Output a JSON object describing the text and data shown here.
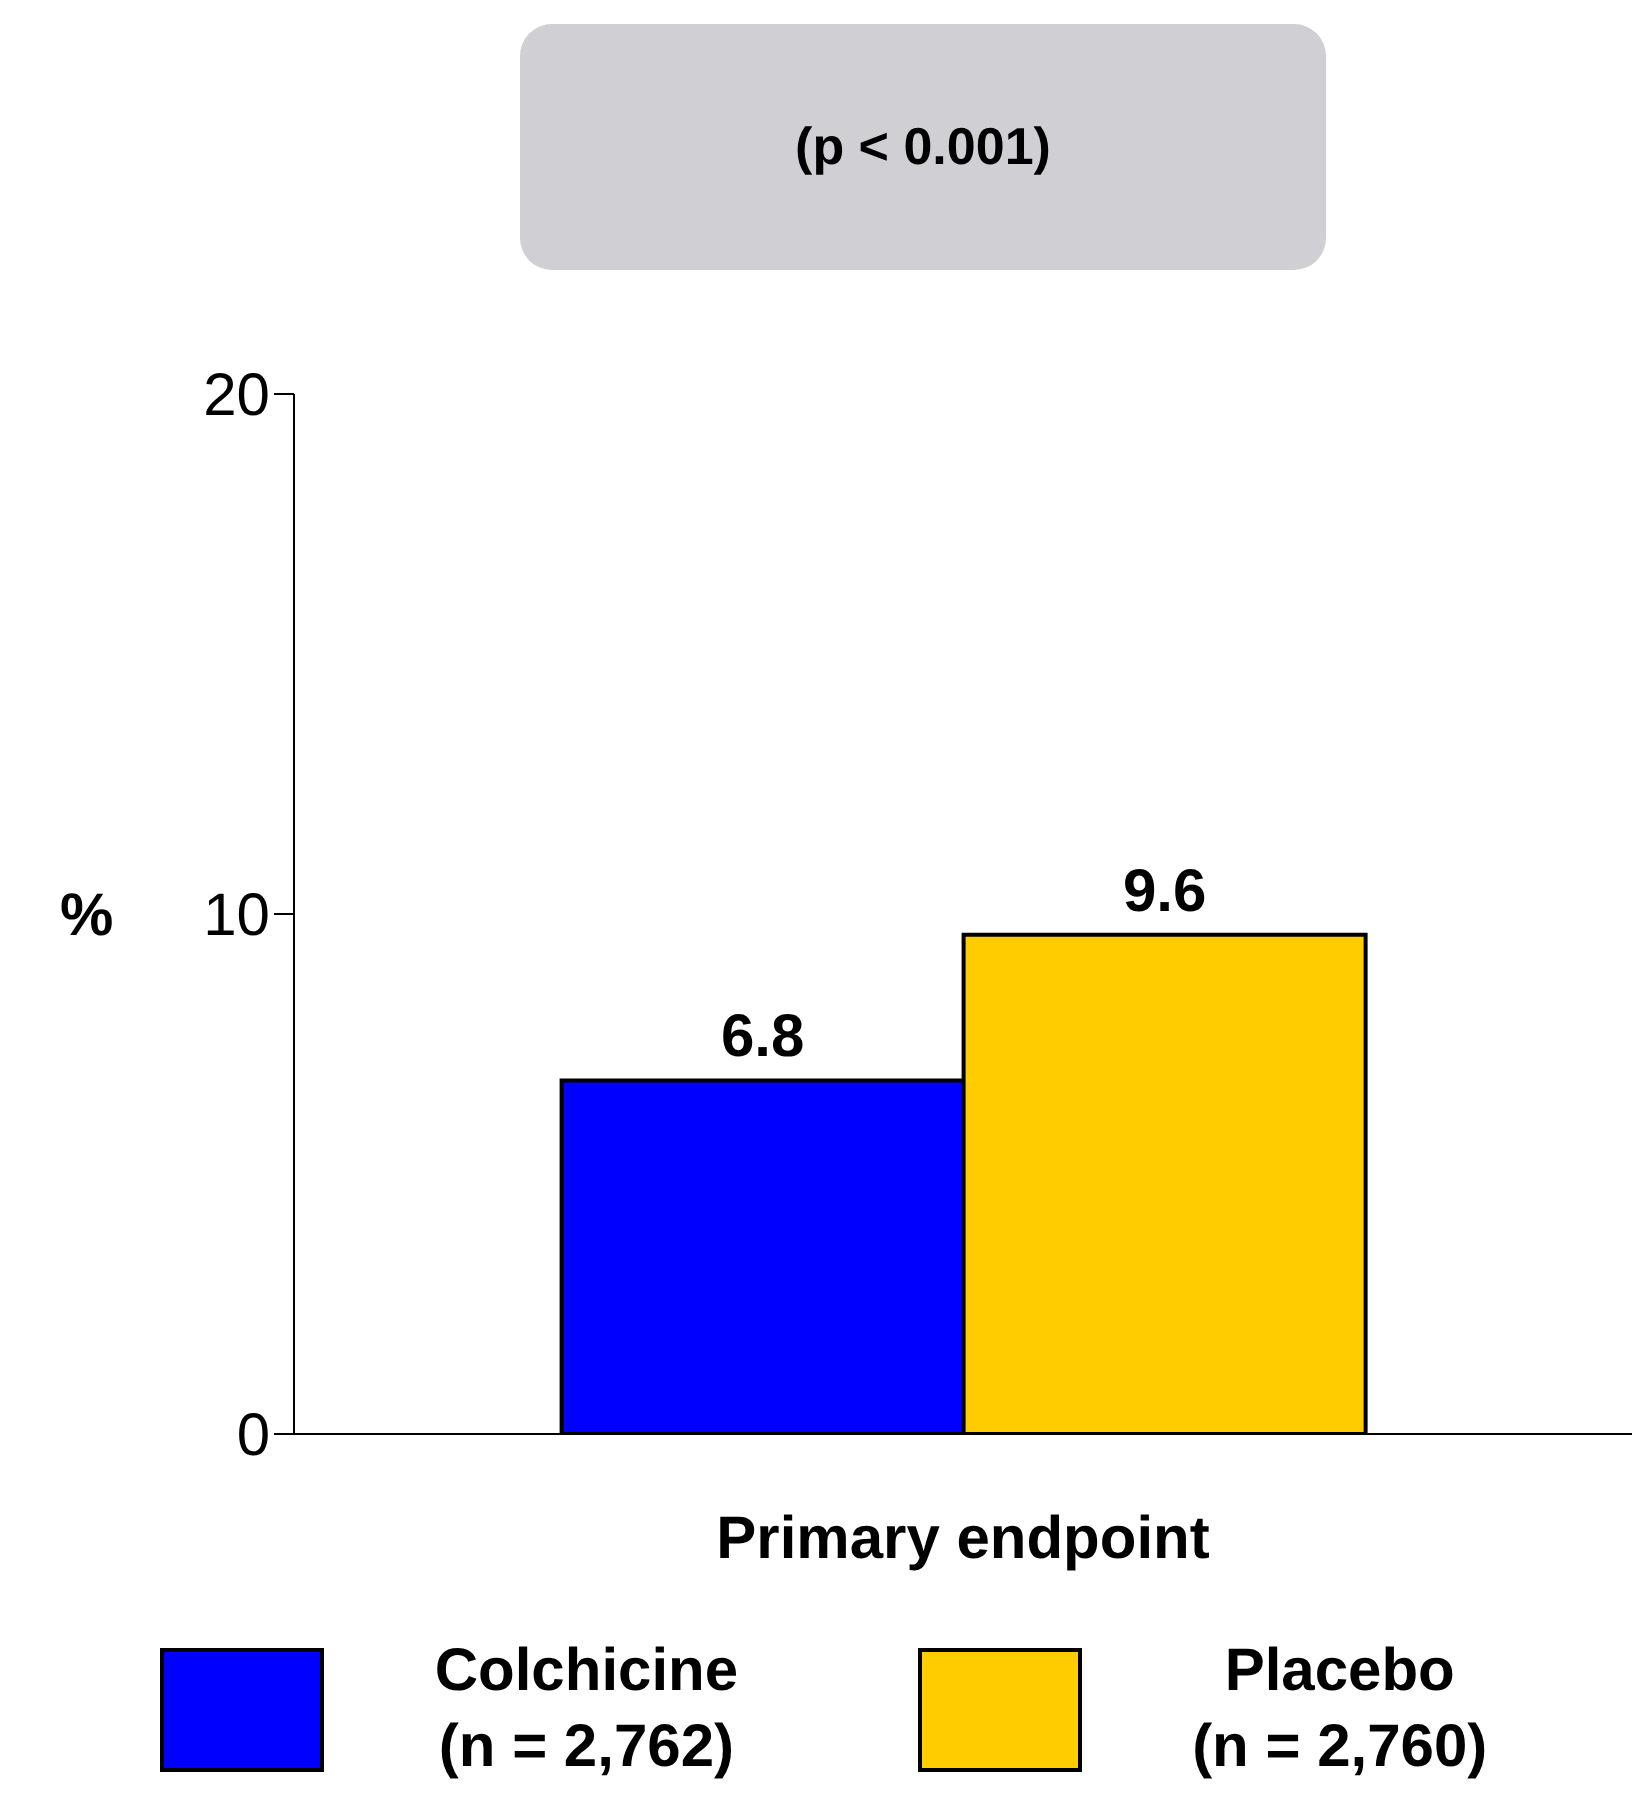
{
  "chart_data": {
    "type": "bar",
    "annotations": [
      "(p < 0.001)"
    ],
    "ylabel": "%",
    "categories": [
      "Primary endpoint"
    ],
    "series": [
      {
        "name": "Colchicine\n(n = 2,762)",
        "color": "#0000ff",
        "values": [
          6.8
        ]
      },
      {
        "name": "Placebo\n(n = 2,760)",
        "color": "#ffcc00",
        "values": [
          9.6
        ]
      }
    ],
    "ylim": [
      0,
      20
    ],
    "yticks": [
      0,
      10,
      20
    ],
    "data_labels": true,
    "legend": "bottom",
    "grid": false
  }
}
